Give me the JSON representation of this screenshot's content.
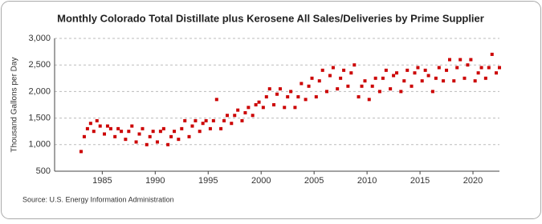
{
  "chart_data": {
    "type": "scatter",
    "title": "Monthly Colorado Total Distillate plus Kerosene All Sales/Deliveries by Prime Supplier",
    "y_label": "Thousand Gallons per Day",
    "source": "Source: U.S. Energy Information Administration",
    "color": "#cc0000",
    "grid": true,
    "xlim": [
      1980.5,
      2022.5
    ],
    "xticks": [
      1985,
      1990,
      1995,
      2000,
      2005,
      2010,
      2015,
      2020
    ],
    "ylim": [
      500,
      3000
    ],
    "yticks": [
      {
        "value": 500,
        "label": "500"
      },
      {
        "value": 1000,
        "label": "1,000"
      },
      {
        "value": 1500,
        "label": "1,500"
      },
      {
        "value": 2000,
        "label": "2,000"
      },
      {
        "value": 2500,
        "label": "2,500"
      },
      {
        "value": 3000,
        "label": "3,000"
      }
    ],
    "x": [
      1983.0,
      1983.3,
      1983.6,
      1983.9,
      1984.2,
      1984.5,
      1984.8,
      1985.2,
      1985.5,
      1985.8,
      1986.2,
      1986.5,
      1986.8,
      1987.2,
      1987.5,
      1987.8,
      1988.2,
      1988.5,
      1988.8,
      1989.2,
      1989.5,
      1989.8,
      1990.2,
      1990.5,
      1990.8,
      1991.2,
      1991.5,
      1991.8,
      1992.2,
      1992.5,
      1992.8,
      1993.2,
      1993.5,
      1993.8,
      1994.2,
      1994.5,
      1994.8,
      1995.2,
      1995.5,
      1995.8,
      1996.2,
      1996.5,
      1996.8,
      1997.2,
      1997.5,
      1997.8,
      1998.2,
      1998.5,
      1998.8,
      1999.2,
      1999.5,
      1999.8,
      2000.2,
      2000.5,
      2000.8,
      2001.2,
      2001.5,
      2001.8,
      2002.2,
      2002.5,
      2002.8,
      2003.2,
      2003.5,
      2003.8,
      2004.2,
      2004.5,
      2004.8,
      2005.2,
      2005.5,
      2005.8,
      2006.2,
      2006.5,
      2006.8,
      2007.2,
      2007.5,
      2007.8,
      2008.2,
      2008.5,
      2008.8,
      2009.2,
      2009.5,
      2009.8,
      2010.2,
      2010.5,
      2010.8,
      2011.2,
      2011.5,
      2011.8,
      2012.2,
      2012.5,
      2012.8,
      2013.2,
      2013.5,
      2013.8,
      2014.2,
      2014.5,
      2014.8,
      2015.2,
      2015.5,
      2015.8,
      2016.2,
      2016.5,
      2016.8,
      2017.2,
      2017.5,
      2017.8,
      2018.2,
      2018.5,
      2018.8,
      2019.2,
      2019.5,
      2019.8,
      2020.2,
      2020.5,
      2020.8,
      2021.2,
      2021.5,
      2021.8,
      2022.2,
      2022.5
    ],
    "values": [
      870,
      1150,
      1300,
      1400,
      1250,
      1450,
      1350,
      1200,
      1350,
      1300,
      1150,
      1300,
      1250,
      1100,
      1250,
      1350,
      1050,
      1200,
      1300,
      1000,
      1150,
      1250,
      1050,
      1250,
      1300,
      1000,
      1150,
      1250,
      1100,
      1300,
      1450,
      1150,
      1350,
      1450,
      1250,
      1400,
      1450,
      1300,
      1450,
      1850,
      1300,
      1450,
      1550,
      1400,
      1550,
      1650,
      1450,
      1600,
      1700,
      1550,
      1750,
      1800,
      1700,
      1900,
      2050,
      1750,
      1950,
      2050,
      1700,
      1900,
      2000,
      1700,
      1900,
      2150,
      1850,
      2100,
      2250,
      1900,
      2200,
      2400,
      2000,
      2300,
      2450,
      2050,
      2250,
      2400,
      2100,
      2350,
      2500,
      1900,
      2100,
      2200,
      1850,
      2100,
      2250,
      2000,
      2250,
      2400,
      2050,
      2300,
      2350,
      2000,
      2200,
      2400,
      2100,
      2350,
      2450,
      2200,
      2400,
      2300,
      2000,
      2250,
      2450,
      2200,
      2400,
      2600,
      2200,
      2450,
      2600,
      2250,
      2500,
      2600,
      2200,
      2350,
      2450,
      2250,
      2450,
      2700,
      2350,
      2450
    ]
  }
}
